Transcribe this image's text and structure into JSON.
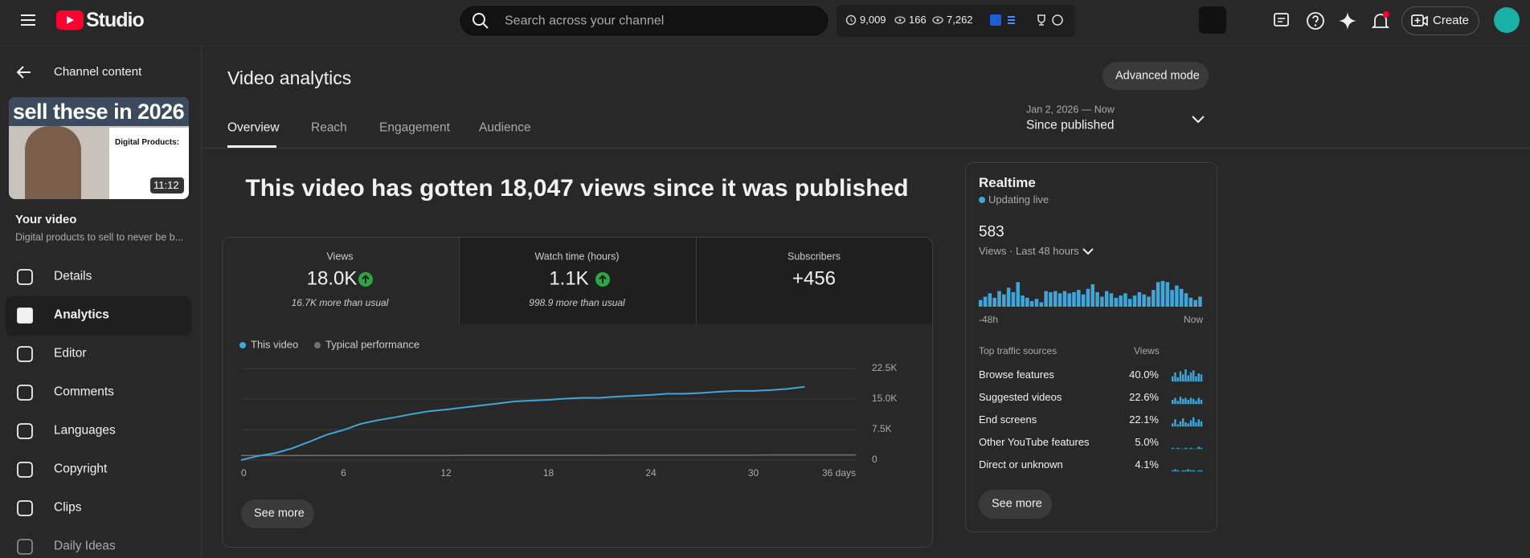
{
  "header": {
    "logo": "Studio",
    "search_placeholder": "Search across your channel",
    "stats": [
      "9,009",
      "166",
      "7,262"
    ],
    "create": "Create"
  },
  "sidebar": {
    "back": "Channel content",
    "thumbnail_title": "sell these in 2026",
    "thumbnail_card_title": "Digital Products:",
    "duration": "11:12",
    "video_label": "Your video",
    "video_title": "Digital products to sell to never be b...",
    "menu": [
      "Details",
      "Analytics",
      "Editor",
      "Comments",
      "Languages",
      "Copyright",
      "Clips",
      "Daily Ideas"
    ]
  },
  "page": {
    "title": "Video analytics",
    "advanced_mode": "Advanced mode",
    "tabs": [
      "Overview",
      "Reach",
      "Engagement",
      "Audience"
    ],
    "date_range": "Jan 2, 2026 — Now",
    "period": "Since published",
    "headline": "This video has gotten 18,047 views since it was published"
  },
  "metrics": [
    {
      "label": "Views",
      "value": "18.0K",
      "note": "16.7K more than usual"
    },
    {
      "label": "Watch time (hours)",
      "value": "1.1K",
      "note": "998.9 more than usual"
    },
    {
      "label": "Subscribers",
      "value": "+456"
    }
  ],
  "chart_data": {
    "type": "line",
    "x": [
      0,
      1,
      2,
      3,
      4,
      5,
      6,
      7,
      8,
      9,
      10,
      11,
      12,
      13,
      14,
      15,
      16,
      17,
      18,
      19,
      20,
      21,
      22,
      23,
      24,
      25,
      26,
      27,
      28,
      29,
      30,
      31,
      32,
      33,
      34,
      35,
      36
    ],
    "series": [
      {
        "name": "This video",
        "color": "#3ea6d8",
        "values": [
          0,
          1000,
          1700,
          2900,
          4500,
          6200,
          7400,
          8900,
          9800,
          10500,
          11300,
          12000,
          12400,
          12900,
          13400,
          13900,
          14400,
          14600,
          14800,
          15100,
          15300,
          15300,
          15600,
          15800,
          16000,
          16300,
          16300,
          16500,
          16800,
          17000,
          17000,
          17200,
          17500,
          18000,
          null,
          null,
          null
        ]
      },
      {
        "name": "Typical performance",
        "color": "#717171",
        "values": [
          1100,
          1100,
          1100,
          1100,
          1100,
          1100,
          1100,
          1100,
          1100,
          1100,
          1100,
          1100,
          1100,
          1150,
          1150,
          1150,
          1150,
          1150,
          1150,
          1150,
          1150,
          1150,
          1200,
          1200,
          1200,
          1200,
          1200,
          1200,
          1200,
          1200,
          1200,
          1250,
          1250,
          1250,
          1250,
          1250,
          1250
        ]
      }
    ],
    "xlim": [
      0,
      36
    ],
    "xticks": [
      0,
      6,
      12,
      18,
      24,
      30,
      {
        "value": 36,
        "label": "36 days"
      }
    ],
    "ylim": [
      0,
      22500
    ],
    "yticks": [
      0,
      {
        "value": 7500,
        "label": "7.5K"
      },
      {
        "value": 15000,
        "label": "15.0K"
      },
      {
        "value": 22500,
        "label": "22.5K"
      }
    ],
    "grid": true
  },
  "see_more": "See more",
  "realtime": {
    "title": "Realtime",
    "status": "Updating live",
    "value": "583",
    "period": "Views · Last 48 hours",
    "bars": [
      6,
      9,
      12,
      8,
      14,
      11,
      17,
      13,
      22,
      10,
      8,
      5,
      7,
      4,
      14,
      13,
      14,
      12,
      14,
      12,
      13,
      15,
      11,
      16,
      20,
      13,
      9,
      14,
      12,
      8,
      10,
      12,
      7,
      10,
      13,
      11,
      9,
      15,
      22,
      23,
      22,
      15,
      19,
      16,
      12,
      8,
      6,
      9
    ],
    "start_label": "-48h",
    "end_label": "Now",
    "traffic_header": "Top traffic sources",
    "views_header": "Views",
    "sources": [
      {
        "name": "Browse features",
        "share": "40.0%",
        "trend": [
          5,
          9,
          4,
          10,
          7,
          12,
          6,
          9,
          11,
          5,
          8,
          7
        ]
      },
      {
        "name": "Suggested videos",
        "share": "22.6%",
        "trend": [
          4,
          6,
          3,
          7,
          5,
          6,
          4,
          6,
          5,
          3,
          6,
          4
        ]
      },
      {
        "name": "End screens",
        "share": "22.1%",
        "trend": [
          3,
          7,
          2,
          5,
          8,
          4,
          3,
          6,
          9,
          4,
          7,
          5
        ]
      },
      {
        "name": "Other YouTube features",
        "share": "5.0%",
        "trend": [
          1,
          0,
          1,
          0,
          0,
          1,
          0,
          1,
          0,
          0,
          2,
          1
        ]
      },
      {
        "name": "Direct or unknown",
        "share": "4.1%",
        "trend": [
          1,
          2,
          1,
          0,
          1,
          1,
          2,
          1,
          1,
          0,
          1,
          1
        ]
      }
    ],
    "see_more": "See more"
  }
}
